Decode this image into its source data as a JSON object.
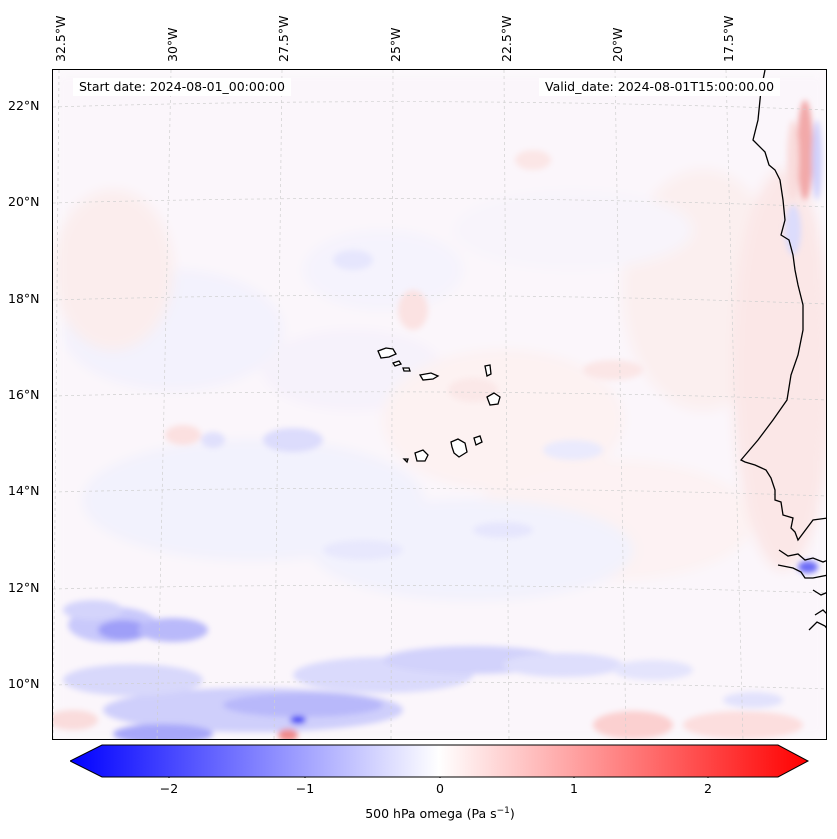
{
  "map": {
    "projection_extent": {
      "lon_min": -33.0,
      "lon_max": -15.0,
      "lat_min": 9.0,
      "lat_max": 22.5
    },
    "start_date_text": "Start date: 2024-08-01_00:00:00",
    "valid_date_text": "Valid_date: 2024-08-01T15:00:00.00",
    "lon_labels": [
      "32.5°W",
      "30°W",
      "27.5°W",
      "25°W",
      "22.5°W",
      "20°W",
      "17.5°W"
    ],
    "lat_labels": [
      "22°N",
      "20°N",
      "18°N",
      "16°N",
      "14°N",
      "12°N",
      "10°N"
    ],
    "land_color": "#ffffff",
    "coastline_color": "#000000",
    "gridline_color": "#cfcfcf"
  },
  "colorbar": {
    "label": "500 hPa omega (Pa s",
    "label_superscript": "−1",
    "label_suffix": ")",
    "ticks": [
      "−2",
      "−1",
      "0",
      "1",
      "2"
    ],
    "tick_values": [
      -2,
      -1,
      0,
      1,
      2
    ],
    "range": [
      -2.5,
      2.5
    ],
    "extend": "both",
    "colormap": "bwr",
    "low_color": "#0000ff",
    "mid_color": "#ffffff",
    "high_color": "#ff0000"
  }
}
